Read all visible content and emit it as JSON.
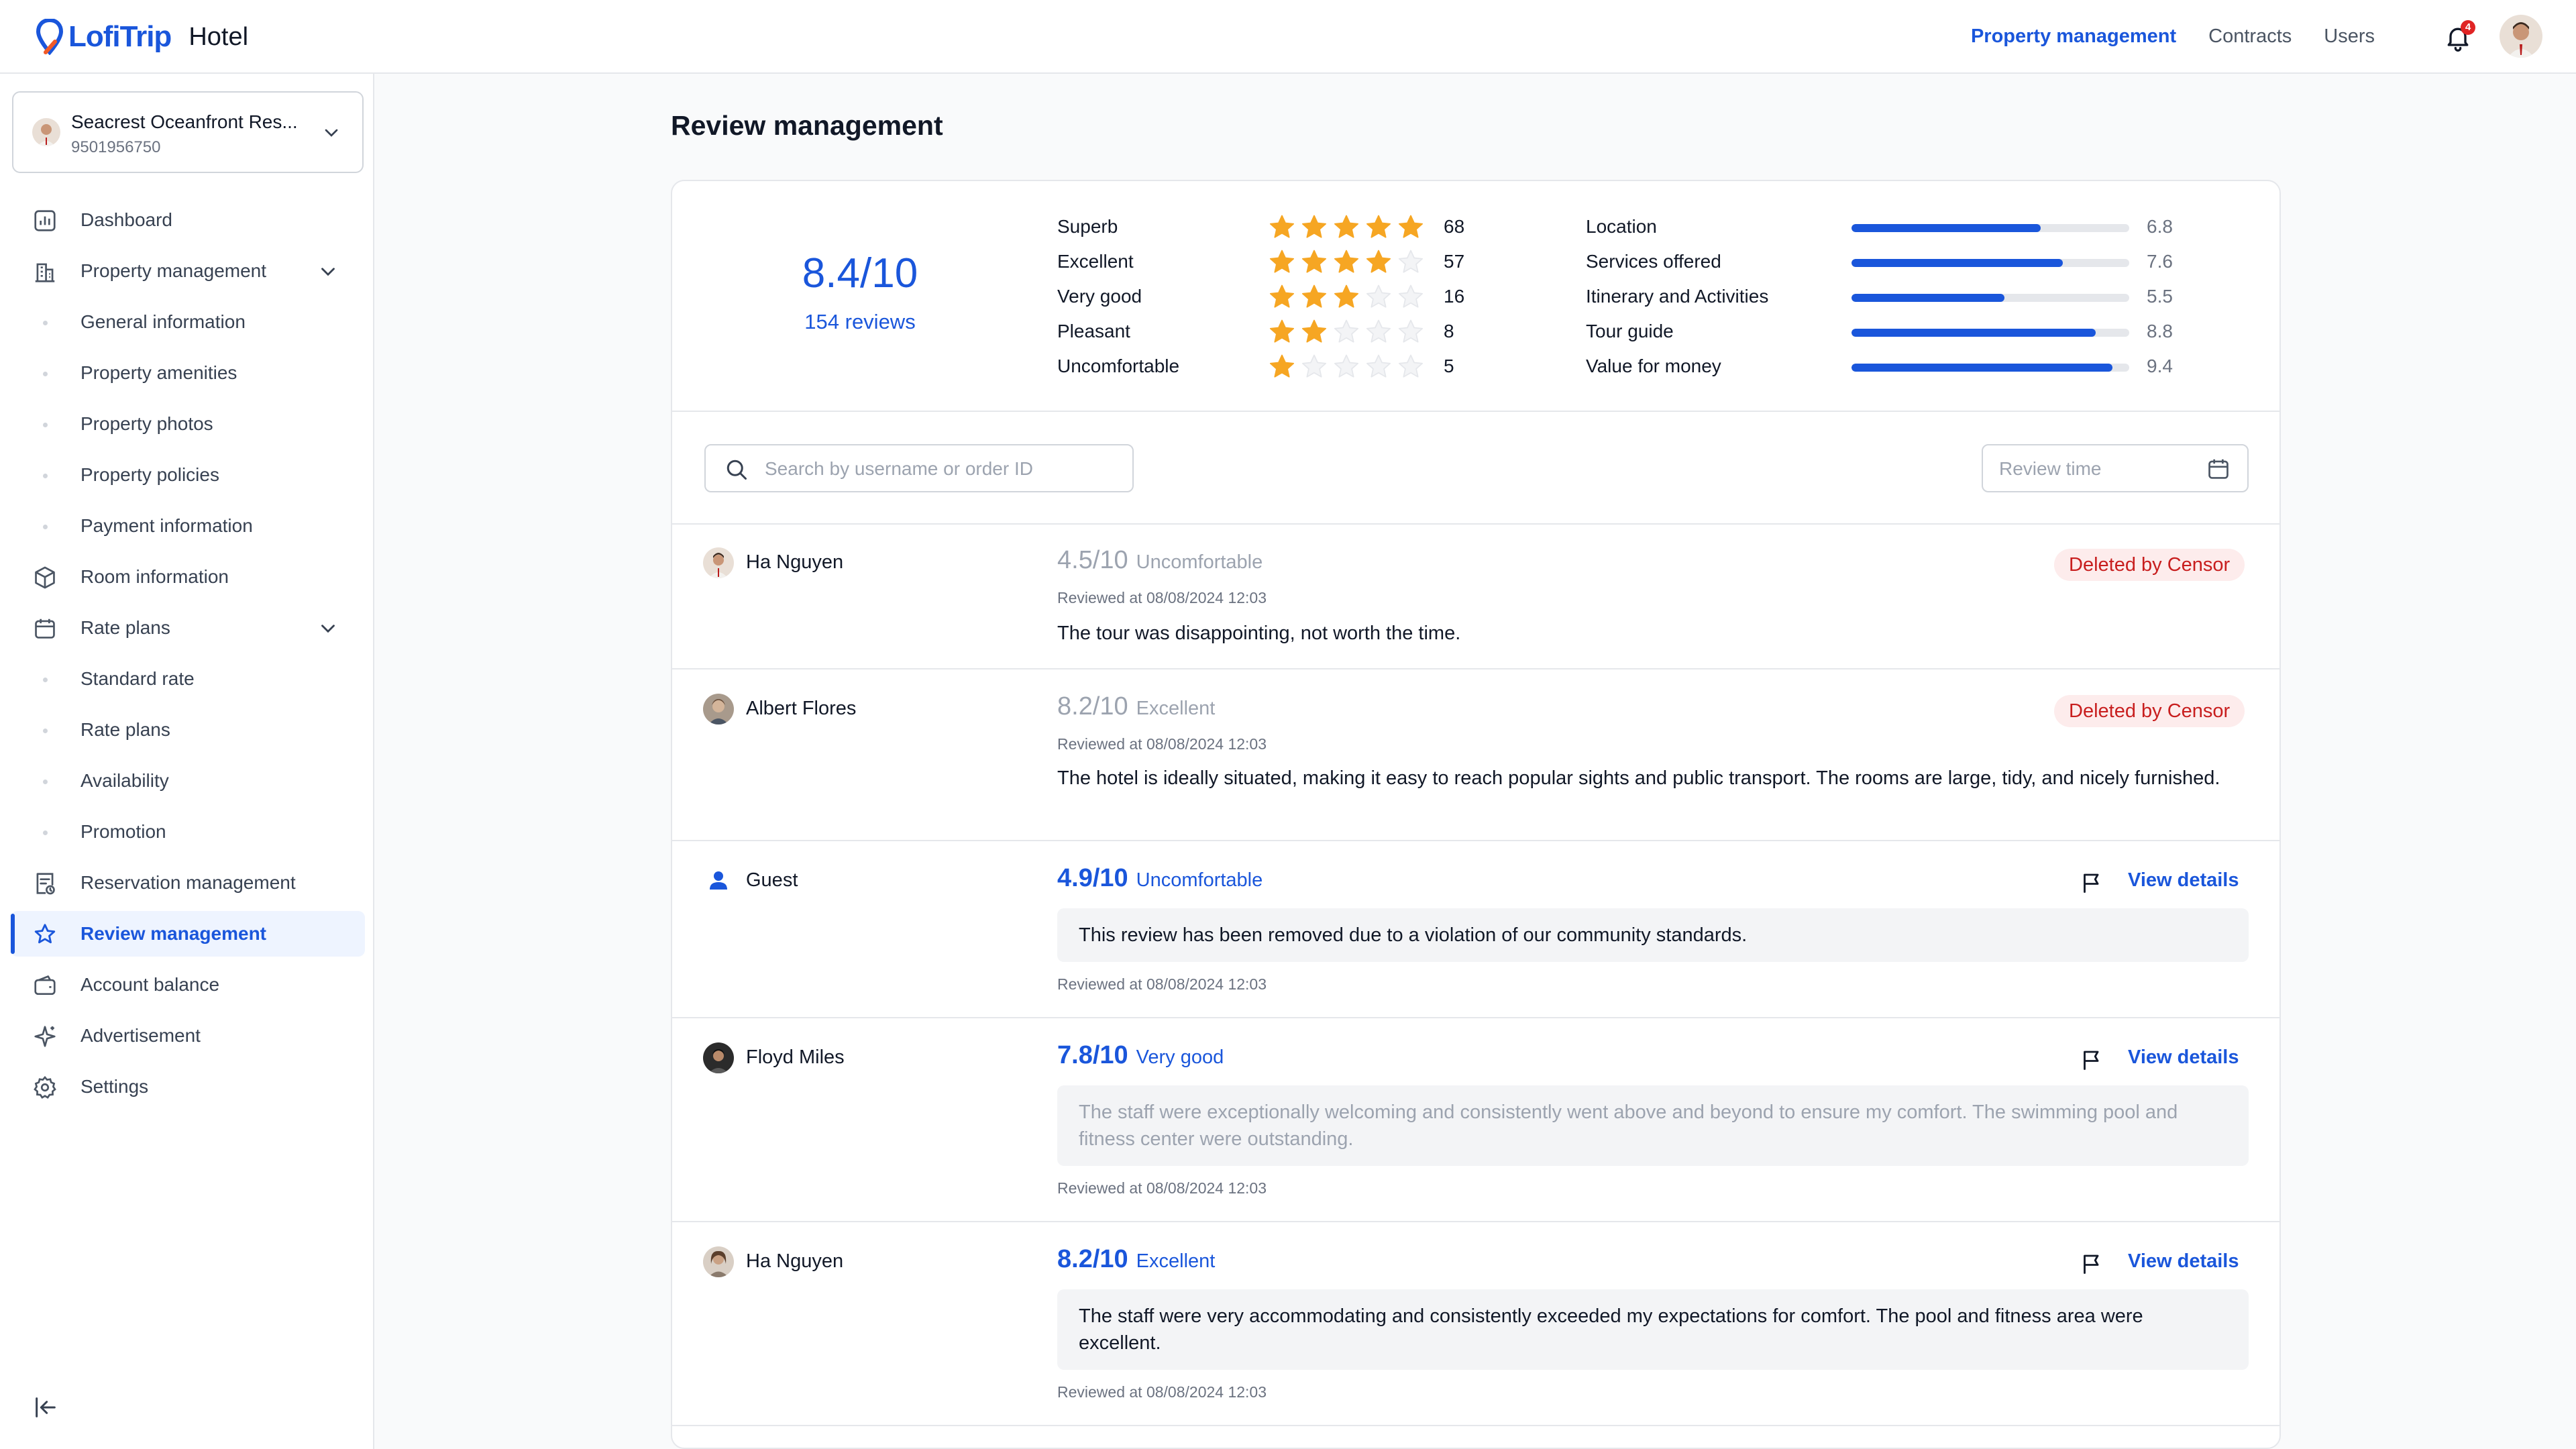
{
  "app": {
    "brand": "LofiTrip",
    "product": "Hotel"
  },
  "topnav": {
    "items": [
      {
        "label": "Property management",
        "active": true
      },
      {
        "label": "Contracts",
        "active": false
      },
      {
        "label": "Users",
        "active": false
      }
    ],
    "notification_count": "4"
  },
  "sidebar": {
    "property": {
      "name": "Seacrest Oceanfront Res...",
      "id": "9501956750"
    },
    "items": [
      {
        "label": "Dashboard",
        "icon": "dashboard-icon"
      },
      {
        "label": "Property management",
        "icon": "building-icon",
        "expandable": true
      },
      {
        "label": "General information",
        "sub": true
      },
      {
        "label": "Property amenities",
        "sub": true
      },
      {
        "label": "Property photos",
        "sub": true
      },
      {
        "label": "Property policies",
        "sub": true
      },
      {
        "label": "Payment information",
        "sub": true
      },
      {
        "label": "Room information",
        "icon": "cube-icon"
      },
      {
        "label": "Rate plans",
        "icon": "calendar-icon",
        "expandable": true
      },
      {
        "label": "Standard rate",
        "sub": true
      },
      {
        "label": "Rate plans",
        "sub": true
      },
      {
        "label": "Availability",
        "sub": true
      },
      {
        "label": "Promotion",
        "sub": true
      },
      {
        "label": "Reservation management",
        "icon": "receipt-icon"
      },
      {
        "label": "Review management",
        "icon": "star-icon",
        "active": true
      },
      {
        "label": "Account balance",
        "icon": "wallet-icon"
      },
      {
        "label": "Advertisement",
        "icon": "sparkle-icon"
      },
      {
        "label": "Settings",
        "icon": "gear-icon"
      }
    ]
  },
  "page": {
    "title": "Review management"
  },
  "summary": {
    "score": "8.4/10",
    "count_label": "154 reviews",
    "distribution": [
      {
        "label": "Superb",
        "stars": 5,
        "count": "68"
      },
      {
        "label": "Excellent",
        "stars": 4,
        "count": "57"
      },
      {
        "label": "Very good",
        "stars": 3,
        "count": "16"
      },
      {
        "label": "Pleasant",
        "stars": 2,
        "count": "8"
      },
      {
        "label": "Uncomfortable",
        "stars": 1,
        "count": "5"
      }
    ],
    "categories": [
      {
        "label": "Location",
        "value": "6.8"
      },
      {
        "label": "Services offered",
        "value": "7.6"
      },
      {
        "label": "Itinerary and Activities",
        "value": "5.5"
      },
      {
        "label": "Tour guide",
        "value": "8.8"
      },
      {
        "label": "Value for money",
        "value": "9.4"
      }
    ]
  },
  "filters": {
    "search_placeholder": "Search by username or order ID",
    "date_placeholder": "Review time"
  },
  "reviews": [
    {
      "name": "Ha Nguyen",
      "score": "4.5/10",
      "rating_word": "Uncomfortable",
      "time": "Reviewed at 08/08/2024 12:03",
      "text": "The tour was disappointing, not worth the time.",
      "status": "Deleted by Censor"
    },
    {
      "name": "Albert Flores",
      "score": "8.2/10",
      "rating_word": "Excellent",
      "time": "Reviewed at 08/08/2024 12:03",
      "text": "The hotel is ideally situated, making it easy to reach popular sights and public transport. The rooms are large, tidy, and nicely furnished.",
      "status": "Deleted by Censor"
    },
    {
      "name": "Guest",
      "score": "4.9/10",
      "rating_word": "Uncomfortable",
      "time": "Reviewed at 08/08/2024 12:03",
      "text": "This review has been removed due to a violation of our community standards.",
      "action": "View details"
    },
    {
      "name": "Floyd Miles",
      "score": "7.8/10",
      "rating_word": "Very good",
      "time": "Reviewed at 08/08/2024 12:03",
      "text": "The staff were exceptionally welcoming and consistently went above and beyond to ensure my comfort. The swimming pool and fitness center were outstanding.",
      "action": "View details"
    },
    {
      "name": "Ha Nguyen",
      "score": "8.2/10",
      "rating_word": "Excellent",
      "time": "Reviewed at 08/08/2024 12:03",
      "text": "The staff were very accommodating and consistently exceeded my expectations for comfort. The pool and fitness area were excellent.",
      "action": "View details"
    }
  ],
  "colors": {
    "accent": "#1a56db",
    "star": "#f6a623",
    "danger": "#c81e1e"
  }
}
